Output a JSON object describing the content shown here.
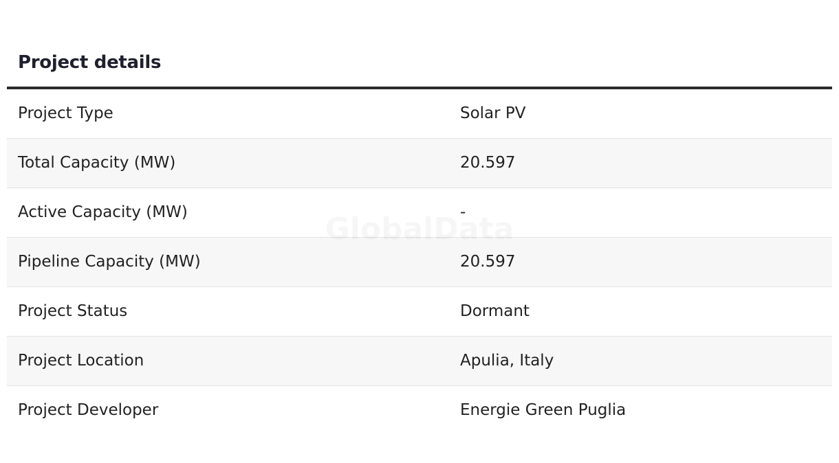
{
  "header": {
    "title": "Project details"
  },
  "table": {
    "rows": [
      [
        "Project Type",
        "Solar PV"
      ],
      [
        "Total Capacity (MW)",
        "20.597"
      ],
      [
        "Active Capacity (MW)",
        "-"
      ],
      [
        "Pipeline Capacity (MW)",
        "20.597"
      ],
      [
        "Project Status",
        "Dormant"
      ],
      [
        "Project Location",
        "Apulia, Italy"
      ],
      [
        "Project Developer",
        "Energie Green Puglia"
      ]
    ]
  },
  "watermark": "GlobalData"
}
